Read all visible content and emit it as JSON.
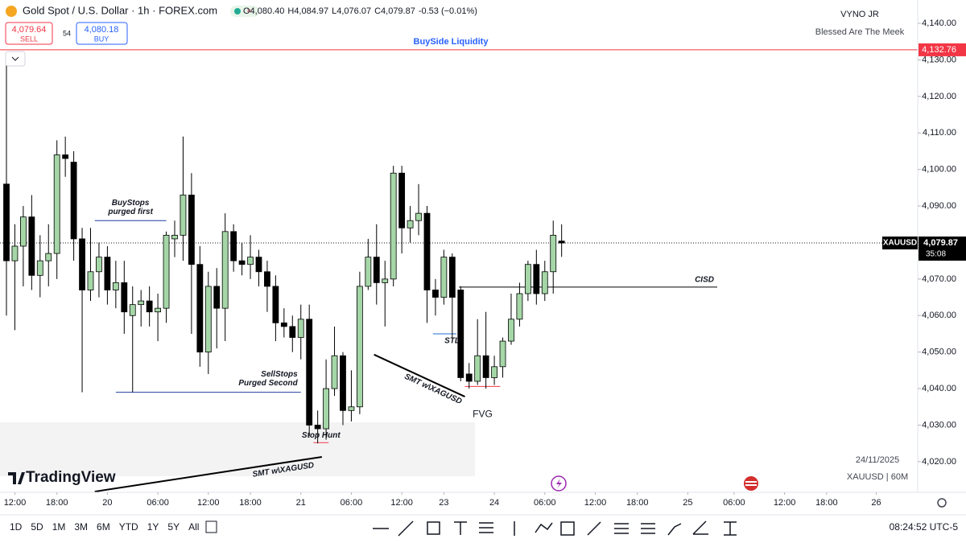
{
  "chart_data": {
    "type": "candlestick",
    "symbol": "Gold Spot / U.S. Dollar · 1h · FOREX.com",
    "ohlc_header": [
      "O4,080.40",
      "H4,084.97",
      "L4,076.07",
      "C4,079.87",
      "-0.53 (−0.01%)"
    ],
    "open": [
      4096,
      4075,
      4079,
      4087,
      4071,
      4075,
      4077,
      4104,
      4102,
      4081,
      4067,
      4072,
      4076,
      4067,
      4069,
      4060,
      4063,
      4064,
      4061,
      4062,
      4081,
      4082,
      4093,
      4074,
      4050,
      4068,
      4062,
      4083,
      4075,
      4074,
      4076,
      4072,
      4068,
      4058,
      4057,
      4054,
      4059,
      4030,
      4029,
      4040,
      4049,
      4034,
      4035,
      4068,
      4076,
      4069,
      4070,
      4099,
      4084,
      4086,
      4088,
      4067,
      4065,
      4076,
      4067,
      4044,
      4042,
      4049,
      4043,
      4046,
      4053,
      4059,
      4066,
      4074,
      4066,
      4072,
      4080.4
    ],
    "high": [
      4129,
      4085,
      4090,
      4093,
      4082,
      4085,
      4108,
      4109,
      4105,
      4084,
      4084,
      4080,
      4079,
      4075,
      4075,
      4068,
      4067,
      4068,
      4066,
      4083,
      4086,
      4109,
      4099,
      4079,
      4072,
      4073,
      4088,
      4085,
      4080,
      4082,
      4078,
      4075,
      4071,
      4062,
      4060,
      4063,
      4063,
      4034,
      4048,
      4057,
      4050,
      4045,
      4072,
      4081,
      4085,
      4075,
      4101,
      4101,
      4090,
      4096,
      4090,
      4070,
      4078,
      4077,
      4068,
      4047,
      4059,
      4061,
      4049,
      4054,
      4066,
      4069,
      4075,
      4078,
      4075,
      4086,
      4084.97
    ],
    "low": [
      4060,
      4056,
      4068,
      4067,
      4065,
      4068,
      4070,
      4098,
      4075,
      4039,
      4064,
      4065,
      4063,
      4062,
      4055,
      4039,
      4057,
      4057,
      4053,
      4058,
      4076,
      4075,
      4055,
      4046,
      4044,
      4051,
      4053,
      4072,
      4071,
      4070,
      4068,
      4061,
      4053,
      4054,
      4050,
      4048,
      4027,
      4025,
      4026,
      4038,
      4030,
      4031,
      4033,
      4067,
      4063,
      4057,
      4068,
      4077,
      4080,
      4082,
      4058,
      4060,
      4063,
      4054,
      4042,
      4040,
      4041,
      4040,
      4041,
      4043,
      4052,
      4057,
      4064,
      4063,
      4064,
      4066,
      4076.07
    ],
    "close": [
      4075,
      4079,
      4087,
      4071,
      4075,
      4077,
      4104,
      4103,
      4081,
      4067,
      4072,
      4076,
      4067,
      4069,
      4061,
      4063,
      4064,
      4061,
      4062,
      4082,
      4082,
      4093,
      4074,
      4050,
      4068,
      4062,
      4083,
      4075,
      4074,
      4076,
      4072,
      4068,
      4058,
      4057,
      4054,
      4059,
      4030,
      4029,
      4040,
      4049,
      4034,
      4035,
      4068,
      4076,
      4069,
      4070,
      4099,
      4084,
      4086,
      4088,
      4067,
      4065,
      4076,
      4065,
      4043,
      4042,
      4049,
      4043,
      4046,
      4053,
      4059,
      4066,
      4074,
      4066,
      4072,
      4082,
      4079.87
    ],
    "up_color": "#a5d6a7",
    "down_color": "#000000",
    "xlim": [
      -0.766,
      108.33
    ],
    "xticks": [
      {
        "value": 1,
        "label": "12:00"
      },
      {
        "value": 6,
        "label": "18:00"
      },
      {
        "value": 12,
        "label": "20"
      },
      {
        "value": 18,
        "label": "06:00"
      },
      {
        "value": 24,
        "label": "12:00"
      },
      {
        "value": 29,
        "label": "18:00"
      },
      {
        "value": 35,
        "label": "21"
      },
      {
        "value": 41,
        "label": "06:00"
      },
      {
        "value": 47,
        "label": "12:00"
      },
      {
        "value": 52,
        "label": "23"
      },
      {
        "value": 58,
        "label": "24"
      },
      {
        "value": 64,
        "label": "06:00"
      },
      {
        "value": 70,
        "label": "12:00"
      },
      {
        "value": 75,
        "label": "18:00"
      },
      {
        "value": 81,
        "label": "25"
      },
      {
        "value": 86.5,
        "label": "06:00"
      },
      {
        "value": 92.5,
        "label": "12:00"
      },
      {
        "value": 97.5,
        "label": "18:00"
      },
      {
        "value": 103.4,
        "label": "26"
      }
    ],
    "ylim": [
      4011.6,
      4146.4
    ],
    "yticks": [
      {
        "value": 4020,
        "label": "4,020.00"
      },
      {
        "value": 4030,
        "label": "4,030.00"
      },
      {
        "value": 4040,
        "label": "4,040.00"
      },
      {
        "value": 4050,
        "label": "4,050.00"
      },
      {
        "value": 4060,
        "label": "4,060.00"
      },
      {
        "value": 4070,
        "label": "4,070.00"
      },
      {
        "value": 4080,
        "label": "4,080.00"
      },
      {
        "value": 4090,
        "label": "4,090.00"
      },
      {
        "value": 4100,
        "label": "4,100.00"
      },
      {
        "value": 4110,
        "label": "4,110.00"
      },
      {
        "value": 4120,
        "label": "4,120.00"
      },
      {
        "value": 4130,
        "label": "4,130.00"
      },
      {
        "value": 4140,
        "label": "4,140.00"
      }
    ],
    "last_price": {
      "value": 4079.87,
      "label": "4,079.87",
      "symbol": "XAUUSD",
      "countdown": "35:08"
    },
    "alert_level": {
      "value": 4132.76,
      "label": "4,132.76",
      "text": "BuySide Liquidity",
      "color": "#f23645"
    },
    "levels": [
      {
        "label": [
          "BuyStops",
          "purged first"
        ],
        "price": 4086,
        "from": 10.5,
        "to": 19,
        "color": "#1e3fa0"
      },
      {
        "label": [
          "SellStops",
          "Purged Second"
        ],
        "price": 4039,
        "from": 13,
        "to": 35,
        "color": "#1e3fa0"
      },
      {
        "label": [
          "CISD"
        ],
        "price": 4067.8,
        "from": 53.8,
        "to": 84.5,
        "color": "#000000"
      },
      {
        "label": [
          "STL"
        ],
        "price": 4055,
        "from": 50.7,
        "to": 53.5,
        "color": "#1e70d0"
      },
      {
        "label": [
          "Stop Hunt"
        ],
        "price": 4025.2,
        "from": 36.5,
        "to": 38.3,
        "color": "#f23645"
      },
      {
        "label": [
          "FVG"
        ],
        "price": 4040.6,
        "from": 54.5,
        "to": 58.7,
        "color": "#f23645"
      }
    ],
    "trendlines": [
      {
        "label": "SMT w\\XAGUSD",
        "from": [
          10.5,
          4011.8
        ],
        "to": [
          37.5,
          4021.3
        ]
      },
      {
        "label": "SMT w\\XAGUSD",
        "from": [
          43.7,
          4049.3
        ],
        "to": [
          54.5,
          4037.8
        ]
      }
    ]
  },
  "ui": {
    "sell_price": "4,079.64",
    "sell": "SELL",
    "spread": "54",
    "buy_price": "4,080.18",
    "buy": "BUY",
    "author": "VYNO JR",
    "motto": "Blessed Are The Meek",
    "date": "24/11/2025",
    "chart_id": "XAUUSD | 60M",
    "brand": "TradingView",
    "ranges": [
      "1D",
      "5D",
      "1M",
      "3M",
      "6M",
      "YTD",
      "1Y",
      "5Y",
      "All"
    ],
    "clock": "08:24:52 UTC-5"
  }
}
